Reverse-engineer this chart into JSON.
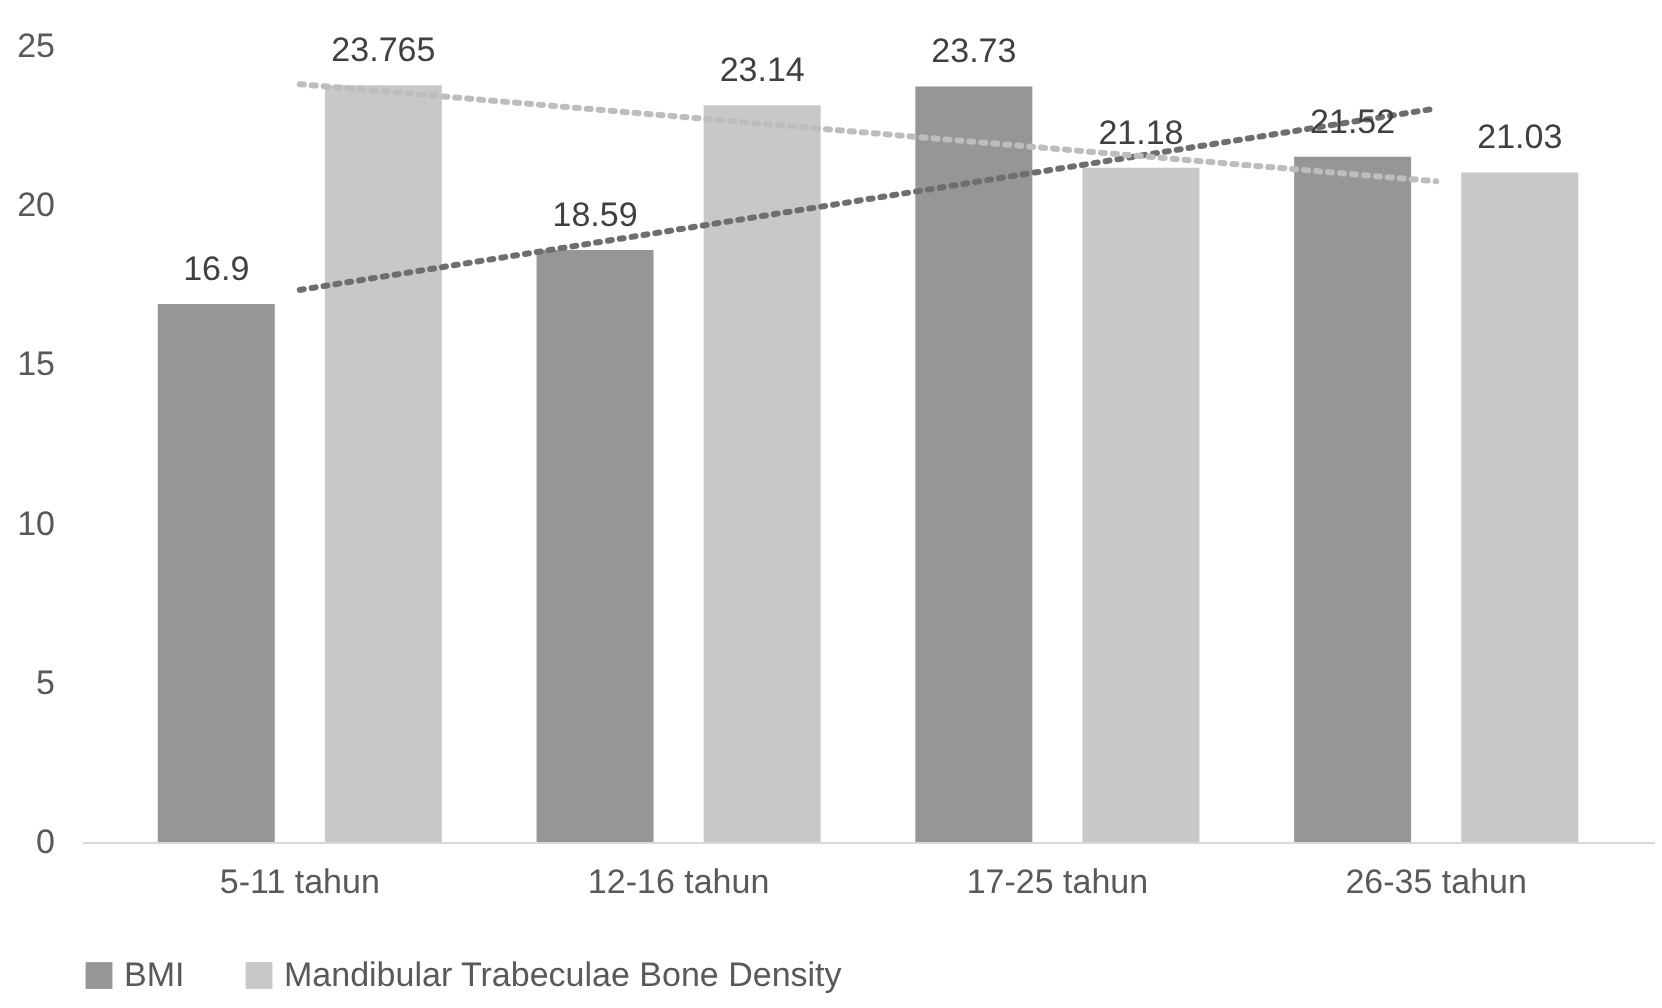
{
  "chart_data": {
    "type": "bar",
    "categories": [
      "5-11 tahun",
      "12-16 tahun",
      "17-25 tahun",
      "26-35 tahun"
    ],
    "series": [
      {
        "name": "BMI",
        "color": "#969696",
        "values": [
          16.9,
          18.59,
          23.73,
          21.52
        ],
        "value_labels": [
          "16.9",
          "18.59",
          "23.73",
          "21.52"
        ]
      },
      {
        "name": "Mandibular Trabeculae Bone Density",
        "color": "#c8c8c8",
        "values": [
          23.765,
          23.14,
          21.18,
          21.03
        ],
        "value_labels": [
          "23.765",
          "23.14",
          "21.18",
          "21.03"
        ]
      },
      {
        "type": "line",
        "color": "#6e6e6e",
        "line_style": "dotted",
        "x": [
          "5-11 tahun",
          "26-35 tahun"
        ],
        "values": [
          17.34,
          23.04
        ]
      },
      {
        "type": "line",
        "color": "#bdbdbd",
        "line_style": "dotted",
        "x": [
          "5-11 tahun",
          "26-35 tahun"
        ],
        "values": [
          23.8,
          20.75
        ]
      }
    ],
    "ylim": [
      0,
      25
    ],
    "yticks": [
      0,
      5,
      10,
      15,
      20,
      25
    ],
    "legend": "bottom",
    "grid": false
  }
}
